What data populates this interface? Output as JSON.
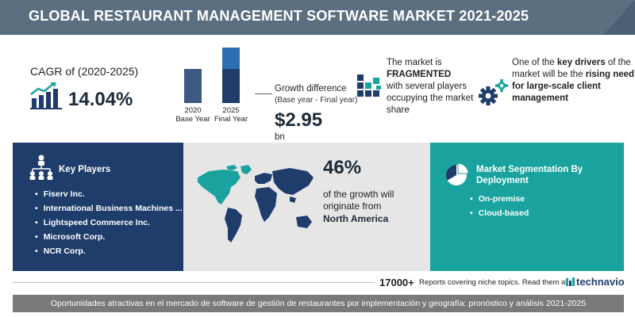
{
  "header": {
    "title": "GLOBAL RESTAURANT MANAGEMENT SOFTWARE MARKET 2021-2025"
  },
  "cagr": {
    "label": "CAGR of (2020-2025)",
    "value": "14.04%",
    "icon": "bar-chart-growth-icon"
  },
  "growth_chart": {
    "bars": [
      {
        "year": "2020",
        "caption": "Base Year",
        "relative_value": 0.62
      },
      {
        "year": "2025",
        "caption": "Final Year",
        "relative_value": 1.0
      }
    ],
    "base_color": "#3d5a80",
    "growth_color": "#2d6fb5",
    "final_dark_color": "#1e3d6b"
  },
  "growth": {
    "label": "Growth difference",
    "sublabel": "(Base year - Final year)",
    "value": "$2.95",
    "unit": "bn"
  },
  "fragmented": {
    "line1": "The market is",
    "highlight": "FRAGMENTED",
    "line2": "with several players occupying the market share",
    "icon": "blocks-icon"
  },
  "drivers": {
    "prefix": "One of the",
    "highlight1": "key drivers",
    "middle": "of the market will be the",
    "highlight2": "rising need for large-scale client management",
    "icon": "gears-icon"
  },
  "key_players": {
    "title": "Key Players",
    "icon": "people-network-icon",
    "items": [
      "Fiserv Inc.",
      "International Business Machines ...",
      "Lightspeed Commerce Inc.",
      "Microsoft Corp.",
      "NCR Corp."
    ]
  },
  "geography": {
    "percent": "46%",
    "text": "of the growth will originate from",
    "region": "North America",
    "icon": "world-map-icon",
    "highlight_color": "#1aa39e"
  },
  "segmentation": {
    "title": "Market Segmentation By Deployment",
    "icon": "pie-chart-icon",
    "items": [
      "On-premise",
      "Cloud-based"
    ]
  },
  "footer": {
    "reports_count": "17000+",
    "reports_text": "Reports covering niche topics. Read them at",
    "brand": "technavio",
    "brand_icon": "technavio-logo-icon"
  },
  "caption": "Oportunidades atractivas en el mercado de software de gestión de restaurantes por implementación y geografía: pronóstico y análisis 2021-2025",
  "colors": {
    "header_bg": "#5c6f80",
    "key_players_bg": "#1e3d6b",
    "geography_bg": "#e6e6e6",
    "segmentation_bg": "#1aa39e",
    "caption_bg": "#7a7a7a"
  }
}
